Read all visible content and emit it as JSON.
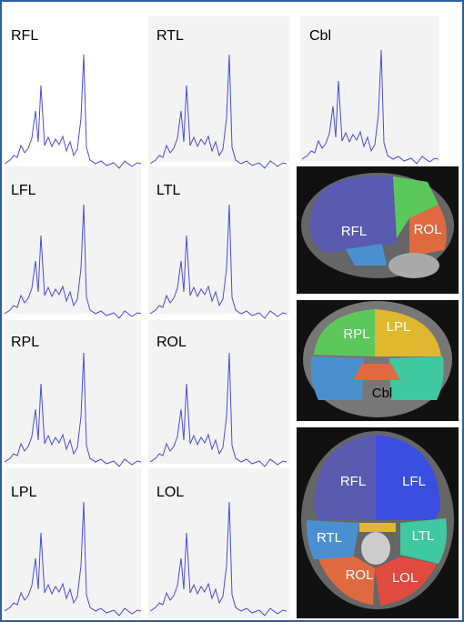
{
  "panels": [
    {
      "label": "RFL"
    },
    {
      "label": "RTL"
    },
    {
      "label": "Cbl"
    },
    {
      "label": "LFL"
    },
    {
      "label": "LTL"
    },
    {
      "label": "RPL"
    },
    {
      "label": "ROL"
    },
    {
      "label": "LPL"
    },
    {
      "label": "LOL"
    }
  ],
  "brain_images": [
    {
      "labels": [
        "RFL",
        "ROL"
      ]
    },
    {
      "labels": [
        "RPL",
        "LPL",
        "Cbl"
      ]
    },
    {
      "labels": [
        "RFL",
        "LFL",
        "RTL",
        "LTL",
        "ROL",
        "LOL"
      ]
    }
  ]
}
